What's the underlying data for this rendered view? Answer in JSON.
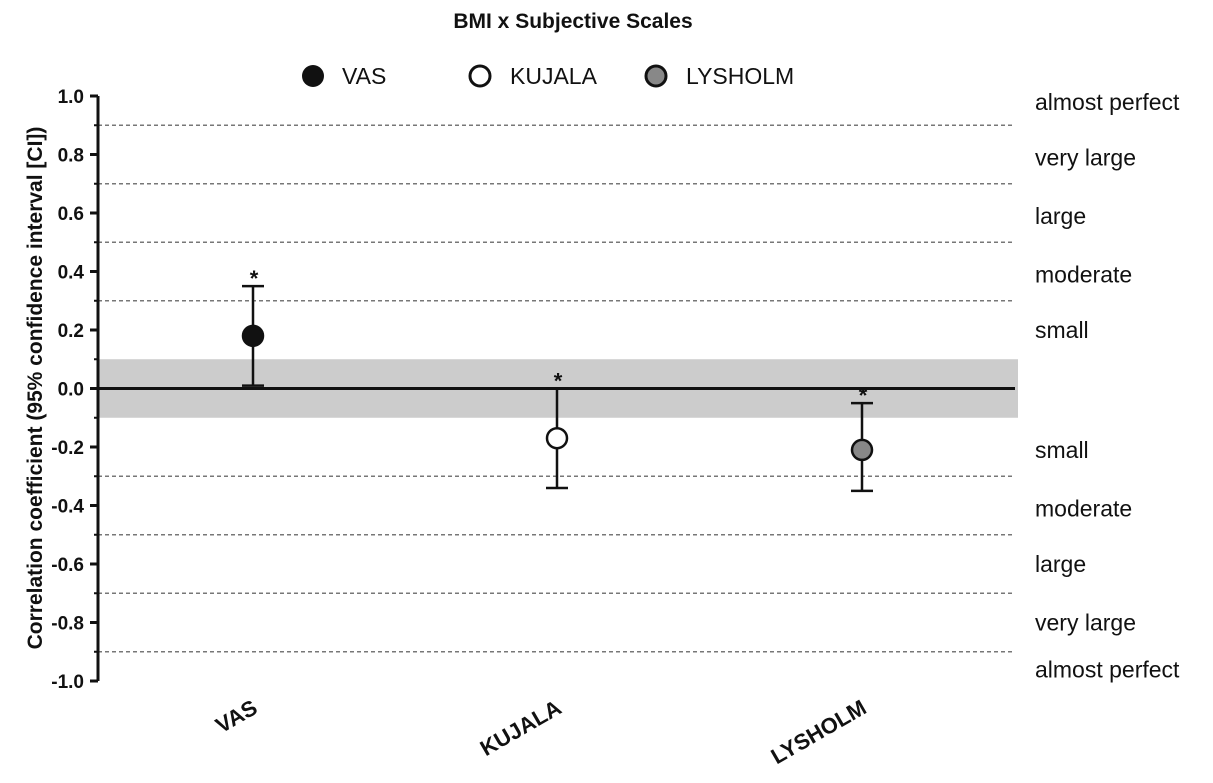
{
  "chart_data": {
    "type": "scatter",
    "title": "BMI x Subjective Scales",
    "xlabel": "",
    "ylabel": "Correlation coefficient (95% confidence interval [CI])",
    "ylim": [
      -1.0,
      1.0
    ],
    "yticks": [
      "1.0",
      "0.8",
      "0.6",
      "0.4",
      "0.2",
      "0.0",
      "-0.2",
      "-0.4",
      "-0.6",
      "-0.8",
      "-1.0"
    ],
    "categories": [
      "VAS",
      "KUJALA",
      "LYSHOLM"
    ],
    "series": [
      {
        "name": "VAS",
        "value": 0.18,
        "ci_low": 0.01,
        "ci_high": 0.35,
        "significant": true,
        "marker_fill": "#111111"
      },
      {
        "name": "KUJALA",
        "value": -0.17,
        "ci_low": -0.34,
        "ci_high": 0.0,
        "significant": true,
        "marker_fill": "#ffffff"
      },
      {
        "name": "LYSHOLM",
        "value": -0.21,
        "ci_low": -0.35,
        "ci_high": -0.05,
        "significant": true,
        "marker_fill": "#888888"
      }
    ],
    "significance_marker": "*",
    "legend_position": "top",
    "trivial_band": [
      -0.1,
      0.1
    ],
    "threshold_lines": [
      0.9,
      0.7,
      0.5,
      0.3,
      -0.3,
      -0.5,
      -0.7,
      -0.9
    ],
    "magnitude_labels": [
      {
        "text": "almost perfect",
        "y": 0.98
      },
      {
        "text": "very large",
        "y": 0.79
      },
      {
        "text": "large",
        "y": 0.59
      },
      {
        "text": "moderate",
        "y": 0.39
      },
      {
        "text": "small",
        "y": 0.2
      },
      {
        "text": "small",
        "y": -0.21
      },
      {
        "text": "moderate",
        "y": -0.41
      },
      {
        "text": "large",
        "y": -0.6
      },
      {
        "text": "very large",
        "y": -0.8
      },
      {
        "text": "almost perfect",
        "y": -0.96
      }
    ],
    "colors": {
      "band": "#cccccc",
      "threshold_line": "#777777",
      "axis": "#111111"
    }
  }
}
